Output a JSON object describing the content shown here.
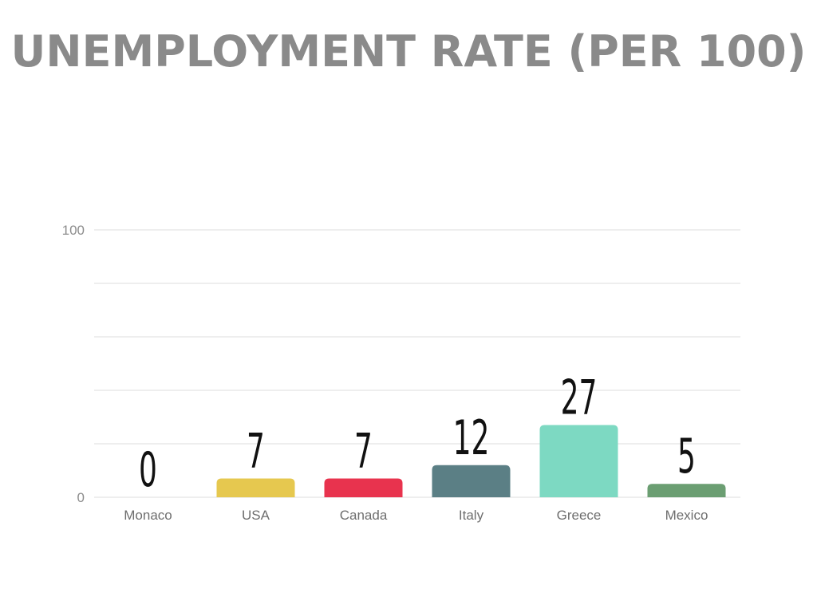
{
  "chart_data": {
    "type": "bar",
    "title": "UNEMPLOYMENT RATE (PER 100)",
    "categories": [
      "Monaco",
      "USA",
      "Canada",
      "Italy",
      "Greece",
      "Mexico"
    ],
    "values": [
      0,
      7,
      7,
      12,
      27,
      5
    ],
    "data_labels": [
      "0",
      "7",
      "7",
      "12",
      "27",
      "5"
    ],
    "colors": [
      "#ffffff",
      "#e6c84f",
      "#e8334e",
      "#5b7f85",
      "#7dd9c2",
      "#6b9e72"
    ],
    "ylim": [
      0,
      100
    ],
    "yticks": [
      0,
      100
    ],
    "ytick_labels": [
      "0",
      "100"
    ],
    "gridlines": [
      0,
      20,
      40,
      60,
      80,
      100
    ],
    "grid": true,
    "legend": "none",
    "xlabel": "",
    "ylabel": ""
  }
}
